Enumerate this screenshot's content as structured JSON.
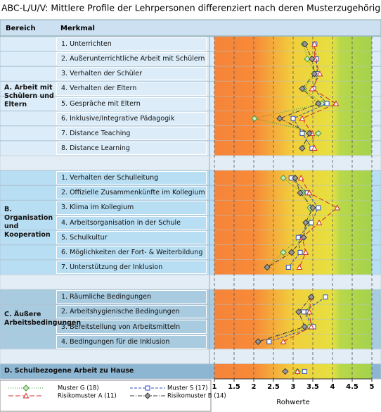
{
  "chart_data": {
    "type": "profile",
    "title": "ABC-L/U/V: Mittlere Profile der Lehrpersonen differenziert nach deren Musterzugehörigkeit",
    "header": [
      "Bereich",
      "Merkmal"
    ],
    "x_label": "Rohwerte",
    "xlim": [
      1,
      5
    ],
    "xticks": [
      1,
      1.5,
      2,
      2.5,
      3,
      3.5,
      4,
      4.5,
      5
    ],
    "grid": true,
    "groups": [
      {
        "name": "A. Arbeit mit Schülern und Eltern",
        "categories": [
          "1. Unterrichten",
          "2. Außerunterrichtliche Arbeit mit Schülern",
          "3. Verhalten der Schüler",
          "4. Verhalten der Eltern",
          "5. Gespräche mit Eltern",
          "6. Inklusive/Integrative Pädagogik",
          "7. Distance Teaching",
          "8. Distance Learning"
        ]
      },
      {
        "name": "B. Organisation und Kooperation",
        "categories": [
          "1. Verhalten der Schulleitung",
          "2. Offizielle Zusammenkünfte im Kollegium",
          "3. Klima im Kollegium",
          "4. Arbeitsorganisation in der Schule",
          "5. Schulkultur",
          "6. Möglichkeiten der Fort- & Weiterbildung",
          "7. Unterstützung der Inklusion"
        ]
      },
      {
        "name": "C. Äußere Arbeitsbedingungen",
        "categories": [
          "1. Räumliche Bedingungen",
          "2. Arbeitshygienische Bedingungen",
          "3. Bereitstellung von Arbeitsmitteln",
          "4. Bedingungen für die Inklusion"
        ]
      },
      {
        "name": "D. Schulbezogene Arbeit zu Hause",
        "categories": [
          null
        ]
      }
    ],
    "series": [
      {
        "name": "Muster G (18)",
        "color": "#3a9a3a",
        "marker": "diamond",
        "dash": "1,2",
        "values": [
          3.27,
          3.36,
          3.59,
          3.27,
          3.73,
          2.02,
          3.64,
          3.23,
          2.75,
          3.23,
          3.43,
          3.43,
          3.16,
          2.75,
          2.34,
          3.46,
          3.36,
          3.41,
          2.11,
          3.11
        ]
      },
      {
        "name": "Muster S (17)",
        "color": "#2f4fc0",
        "marker": "square",
        "dash": "4,2",
        "values": [
          3.55,
          3.59,
          3.62,
          3.52,
          3.86,
          3.0,
          3.23,
          3.48,
          2.95,
          3.36,
          3.64,
          3.46,
          3.13,
          3.18,
          2.88,
          3.82,
          3.27,
          3.52,
          2.39,
          3.29
        ]
      },
      {
        "name": "Risikomuster A (11)",
        "color": "#d02c2c",
        "marker": "triangle",
        "dash": "7,3",
        "values": [
          3.54,
          3.55,
          3.68,
          3.48,
          4.09,
          3.23,
          3.48,
          3.54,
          3.2,
          3.41,
          4.12,
          3.66,
          3.23,
          3.32,
          3.16,
          3.46,
          3.41,
          3.46,
          2.75,
          3.11
        ]
      },
      {
        "name": "Risikomuster B (14)",
        "color": "#3a3a3a",
        "marker": "diamond-filled",
        "dash": "6,2,1,2",
        "values": [
          3.3,
          3.48,
          3.54,
          3.23,
          3.64,
          2.66,
          3.41,
          3.23,
          3.05,
          3.18,
          3.5,
          3.32,
          3.27,
          2.96,
          2.34,
          3.46,
          3.14,
          3.29,
          2.11,
          2.8
        ]
      }
    ]
  }
}
